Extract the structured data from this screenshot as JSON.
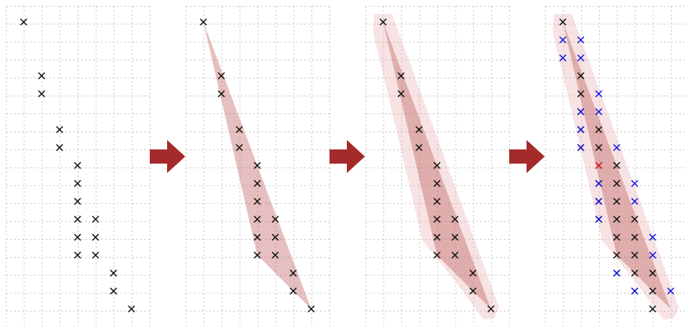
{
  "colors": {
    "grid": "#c8c8c8",
    "black_marker": "#111111",
    "blue_marker": "#1515e6",
    "red_marker": "#e61c1c",
    "hull_fill": "#b03a3a",
    "halo_fill": "#e3a3a3",
    "arrow": "#a52a2a"
  },
  "panels": [
    {
      "id": "panel-points",
      "black_points": [
        [
          0,
          0
        ],
        [
          1,
          3
        ],
        [
          1,
          4
        ],
        [
          2,
          6
        ],
        [
          2,
          7
        ],
        [
          3,
          8
        ],
        [
          3,
          9
        ],
        [
          3,
          10
        ],
        [
          3,
          11
        ],
        [
          3,
          12
        ],
        [
          3,
          13
        ],
        [
          4,
          11
        ],
        [
          4,
          12
        ],
        [
          4,
          13
        ],
        [
          5,
          14
        ],
        [
          5,
          15
        ],
        [
          6,
          16
        ]
      ],
      "blue_points": [],
      "red_points": [],
      "hull": false,
      "halo": false
    },
    {
      "id": "panel-convex-hull",
      "black_points": [
        [
          0,
          0
        ],
        [
          1,
          3
        ],
        [
          1,
          4
        ],
        [
          2,
          6
        ],
        [
          2,
          7
        ],
        [
          3,
          8
        ],
        [
          3,
          9
        ],
        [
          3,
          10
        ],
        [
          3,
          11
        ],
        [
          3,
          12
        ],
        [
          3,
          13
        ],
        [
          4,
          11
        ],
        [
          4,
          12
        ],
        [
          4,
          13
        ],
        [
          5,
          14
        ],
        [
          5,
          15
        ],
        [
          6,
          16
        ]
      ],
      "blue_points": [],
      "red_points": [],
      "hull": true,
      "halo": false
    },
    {
      "id": "panel-buffered-hull",
      "black_points": [
        [
          0,
          0
        ],
        [
          1,
          3
        ],
        [
          1,
          4
        ],
        [
          2,
          6
        ],
        [
          2,
          7
        ],
        [
          3,
          8
        ],
        [
          3,
          9
        ],
        [
          3,
          10
        ],
        [
          3,
          11
        ],
        [
          3,
          12
        ],
        [
          3,
          13
        ],
        [
          4,
          11
        ],
        [
          4,
          12
        ],
        [
          4,
          13
        ],
        [
          5,
          14
        ],
        [
          5,
          15
        ],
        [
          6,
          16
        ]
      ],
      "blue_points": [],
      "red_points": [],
      "hull": true,
      "halo": true
    },
    {
      "id": "panel-filled-cells",
      "black_points": [
        [
          0,
          0
        ],
        [
          1,
          3
        ],
        [
          1,
          4
        ],
        [
          1,
          5
        ],
        [
          1,
          6
        ],
        [
          1,
          7
        ],
        [
          2,
          6
        ],
        [
          2,
          7
        ],
        [
          2,
          8
        ],
        [
          2,
          9
        ],
        [
          2,
          10
        ],
        [
          2,
          11
        ],
        [
          3,
          8
        ],
        [
          3,
          9
        ],
        [
          3,
          10
        ],
        [
          3,
          11
        ],
        [
          3,
          12
        ],
        [
          3,
          13
        ],
        [
          3,
          14
        ],
        [
          4,
          11
        ],
        [
          4,
          12
        ],
        [
          4,
          13
        ],
        [
          4,
          14
        ],
        [
          4,
          15
        ],
        [
          5,
          14
        ],
        [
          5,
          15
        ],
        [
          5,
          16
        ]
      ],
      "blue_points": [
        [
          0,
          1
        ],
        [
          1,
          1
        ],
        [
          0,
          2
        ],
        [
          1,
          2
        ],
        [
          2,
          4
        ],
        [
          2,
          5
        ],
        [
          1,
          5
        ],
        [
          1,
          6
        ],
        [
          1,
          7
        ],
        [
          3,
          7
        ],
        [
          2,
          9
        ],
        [
          2,
          10
        ],
        [
          2,
          11
        ],
        [
          4,
          9
        ],
        [
          4,
          10
        ],
        [
          5,
          12
        ],
        [
          5,
          13
        ],
        [
          3,
          14
        ],
        [
          4,
          15
        ],
        [
          6,
          15
        ]
      ],
      "red_points": [
        [
          2,
          8
        ]
      ],
      "hull": true,
      "halo": true
    }
  ],
  "arrows": [
    {
      "id": "arrow-1"
    },
    {
      "id": "arrow-2"
    },
    {
      "id": "arrow-3"
    }
  ]
}
